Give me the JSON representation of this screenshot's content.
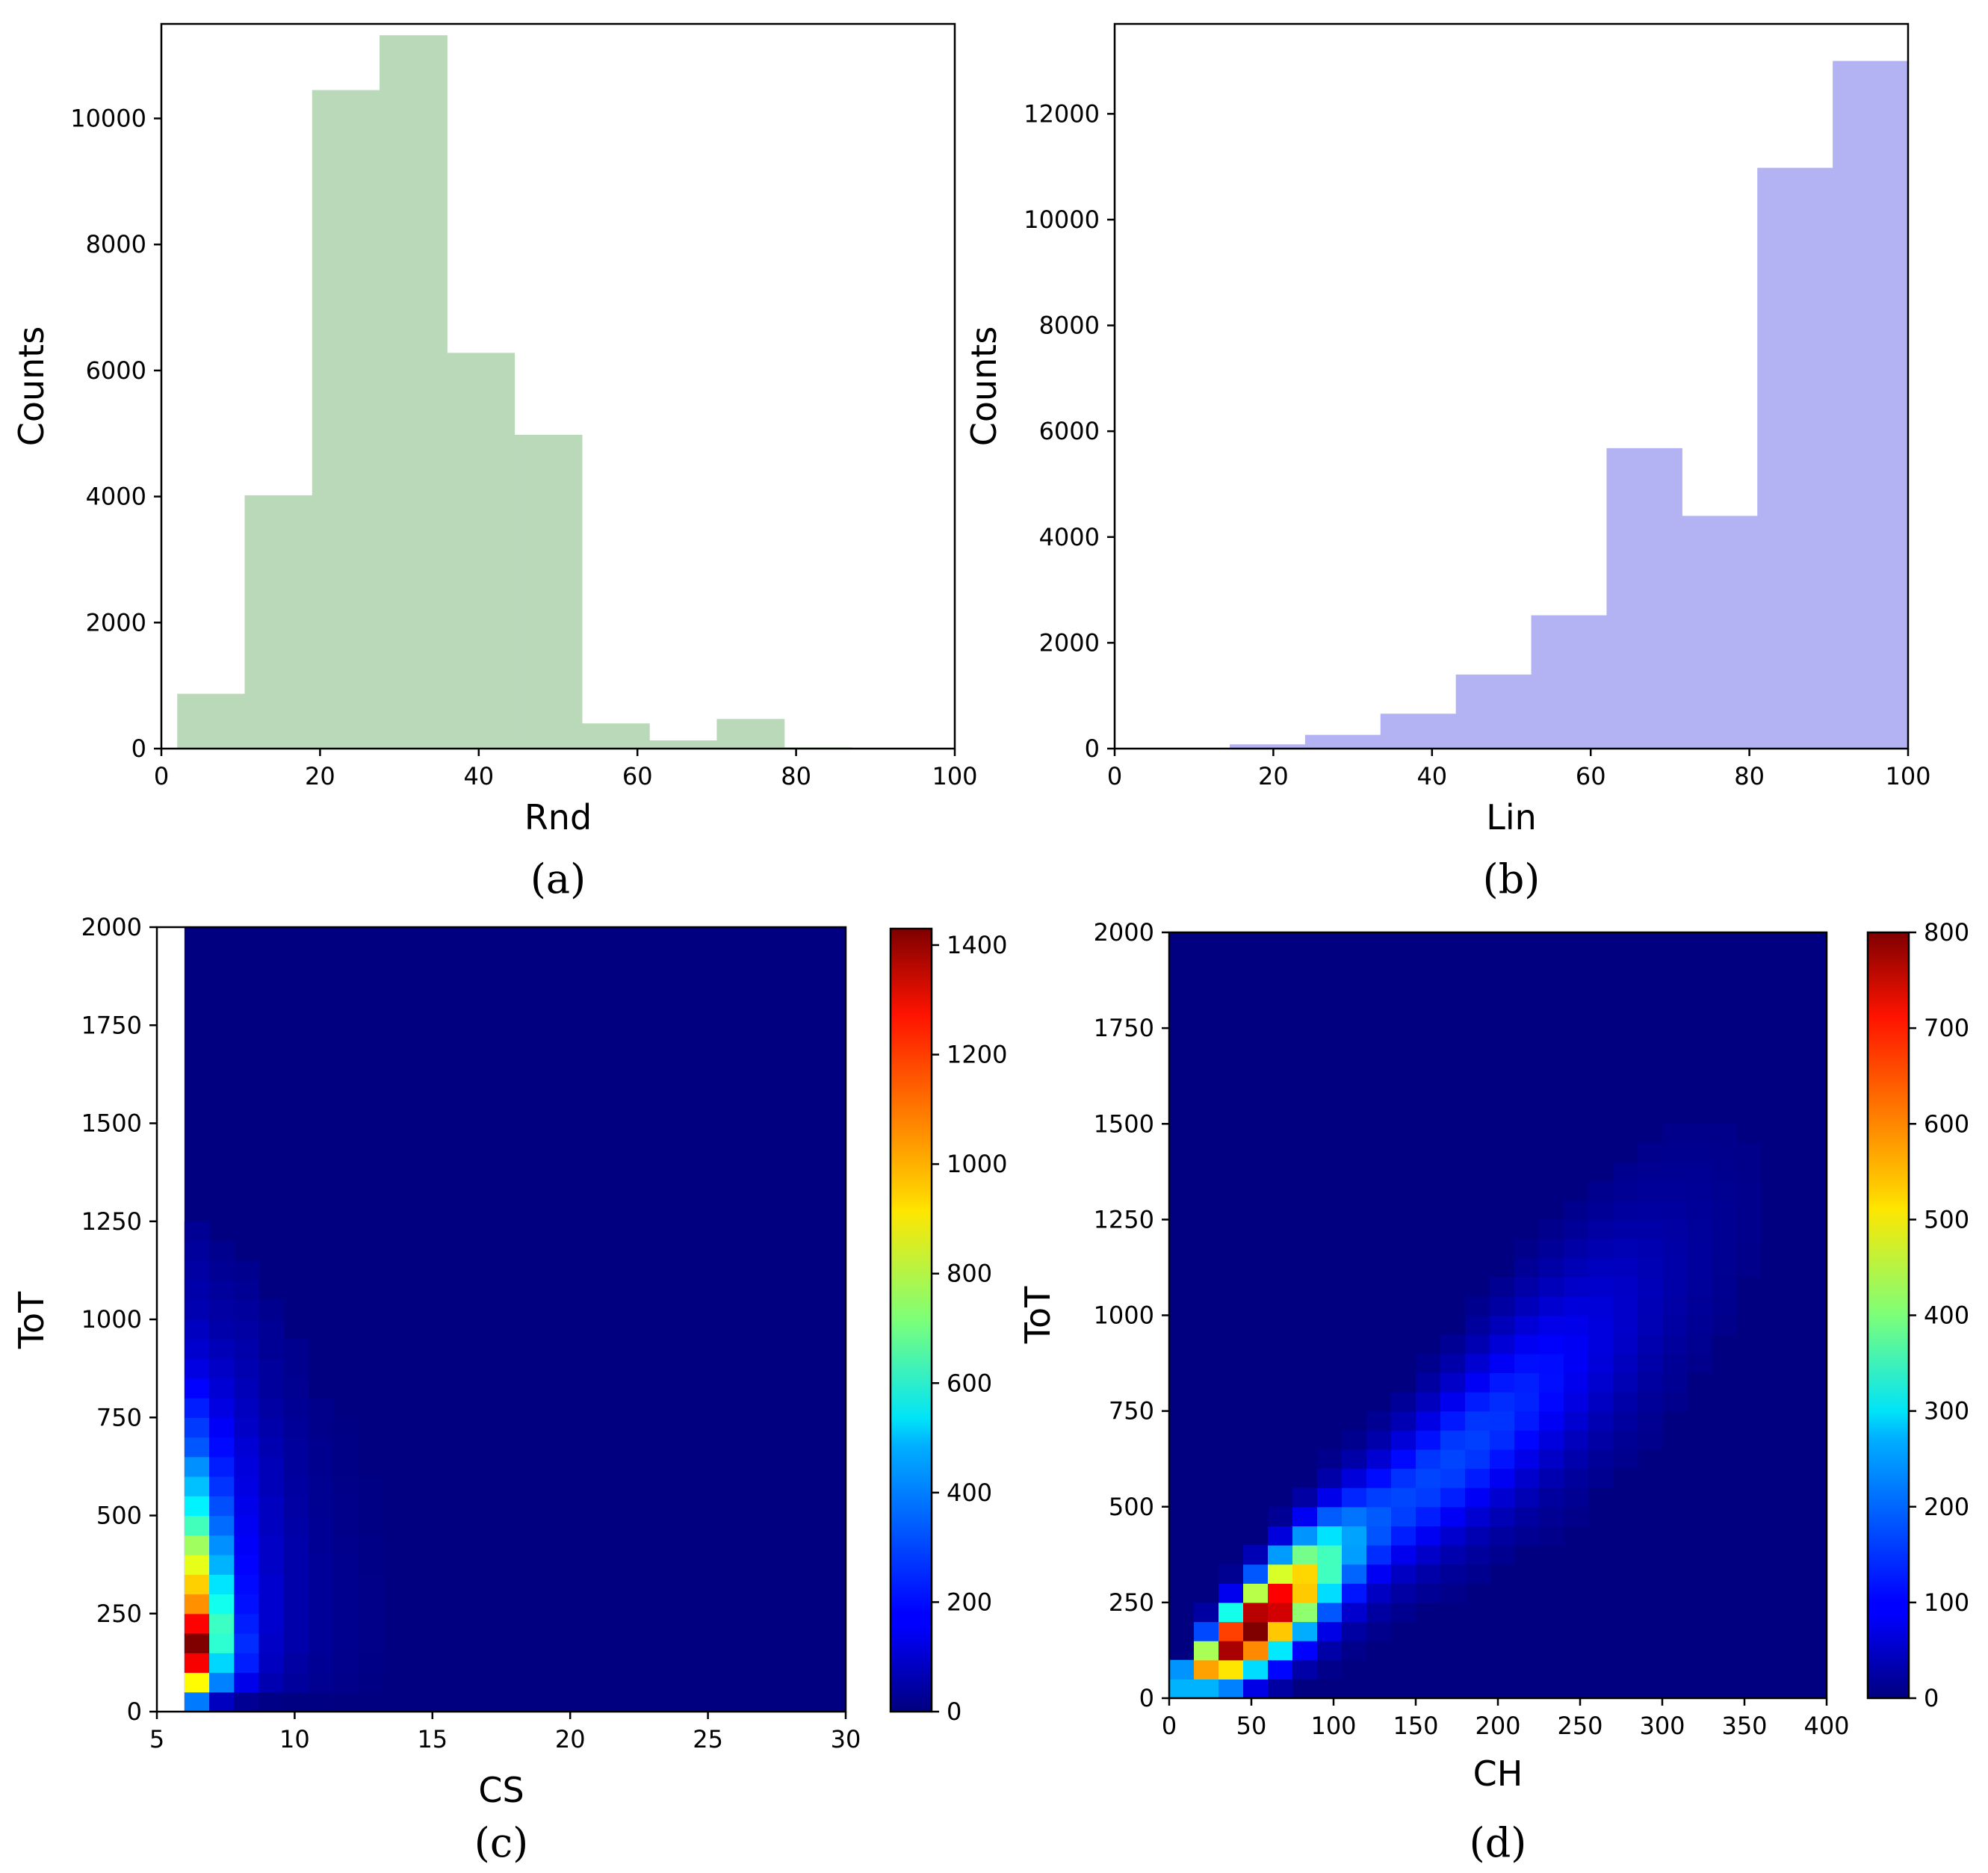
{
  "colors": {
    "hist_a": "#b9d9b9",
    "hist_b": "#b3b3f4"
  },
  "chart_data": [
    {
      "id": "a",
      "type": "bar",
      "caption": "(a)",
      "xlabel": "Rnd",
      "ylabel": "Counts",
      "xlim": [
        0,
        100
      ],
      "ylim": [
        0,
        11500
      ],
      "xticks": [
        0,
        20,
        40,
        60,
        80,
        100
      ],
      "yticks": [
        0,
        2000,
        4000,
        6000,
        8000,
        10000
      ],
      "bin_edges": [
        2,
        10.5,
        19,
        27.5,
        36,
        44.5,
        53,
        61.5,
        70,
        78.5,
        87
      ],
      "values": [
        870,
        4020,
        10450,
        11320,
        6280,
        4980,
        400,
        130,
        470,
        20
      ]
    },
    {
      "id": "b",
      "type": "bar",
      "caption": "(b)",
      "xlabel": "Lin",
      "ylabel": "Counts",
      "xlim": [
        0,
        100
      ],
      "ylim": [
        0,
        13700
      ],
      "xticks": [
        0,
        20,
        40,
        60,
        80,
        100
      ],
      "yticks": [
        0,
        2000,
        4000,
        6000,
        8000,
        10000,
        12000
      ],
      "bin_edges": [
        5,
        14.5,
        24,
        33.5,
        43,
        52.5,
        62,
        71.5,
        81,
        90.5,
        100
      ],
      "values": [
        10,
        80,
        260,
        660,
        1400,
        2520,
        5680,
        4400,
        10980,
        13000
      ]
    },
    {
      "id": "c",
      "type": "heatmap",
      "caption": "(c)",
      "xlabel": "CS",
      "ylabel": "ToT",
      "xlim": [
        5,
        30
      ],
      "ylim": [
        0,
        2000
      ],
      "xticks": [
        5,
        10,
        15,
        20,
        25,
        30
      ],
      "yticks": [
        0,
        250,
        500,
        750,
        1000,
        1250,
        1500,
        1750,
        2000
      ],
      "colorbar_ticks": [
        0,
        200,
        400,
        600,
        800,
        1000,
        1200,
        1400
      ],
      "vmax": 1430,
      "data_extent": {
        "x_start": 6,
        "bin_width_x": 0.9,
        "bin_width_y": 50
      },
      "columns": [
        {
          "x_bin": 0,
          "values": [
            350,
            900,
            1260,
            1430,
            1250,
            1050,
            960,
            860,
            760,
            630,
            520,
            450,
            380,
            300,
            260,
            220,
            180,
            140,
            110,
            90,
            70,
            60,
            50,
            40,
            30
          ]
        },
        {
          "x_bin": 1,
          "values": [
            90,
            360,
            480,
            600,
            620,
            560,
            500,
            430,
            380,
            330,
            290,
            250,
            220,
            190,
            170,
            140,
            120,
            100,
            80,
            60,
            50,
            40,
            30,
            20
          ]
        },
        {
          "x_bin": 2,
          "values": [
            30,
            150,
            220,
            240,
            220,
            200,
            190,
            180,
            170,
            160,
            150,
            140,
            130,
            120,
            100,
            90,
            80,
            70,
            60,
            50,
            40,
            30,
            20
          ]
        },
        {
          "x_bin": 3,
          "values": [
            10,
            70,
            90,
            100,
            110,
            110,
            110,
            100,
            100,
            90,
            90,
            80,
            80,
            70,
            60,
            50,
            40,
            40,
            30,
            30,
            20
          ]
        },
        {
          "x_bin": 4,
          "values": [
            5,
            40,
            50,
            60,
            60,
            60,
            60,
            60,
            60,
            55,
            50,
            45,
            40,
            40,
            35,
            30,
            25,
            20,
            20
          ]
        },
        {
          "x_bin": 5,
          "values": [
            3,
            25,
            30,
            35,
            35,
            35,
            35,
            35,
            30,
            30,
            25,
            25,
            20,
            20,
            15,
            15
          ]
        },
        {
          "x_bin": 6,
          "values": [
            2,
            15,
            18,
            20,
            20,
            20,
            20,
            20,
            18,
            15,
            15,
            12,
            10,
            10,
            8
          ]
        },
        {
          "x_bin": 7,
          "values": [
            1,
            8,
            10,
            12,
            12,
            12,
            12,
            10,
            10,
            8,
            8,
            6
          ]
        }
      ]
    },
    {
      "id": "d",
      "type": "heatmap",
      "caption": "(d)",
      "xlabel": "CH",
      "ylabel": "ToT",
      "xlim": [
        0,
        400
      ],
      "ylim": [
        0,
        2000
      ],
      "xticks": [
        0,
        50,
        100,
        150,
        200,
        250,
        300,
        350,
        400
      ],
      "yticks": [
        0,
        250,
        500,
        750,
        1000,
        1250,
        1500,
        1750,
        2000
      ],
      "colorbar_ticks": [
        0,
        100,
        200,
        300,
        400,
        500,
        600,
        700,
        800
      ],
      "vmax": 800,
      "grid": {
        "cell_x": 15,
        "cell_y": 50,
        "ridge_slope": 3.6,
        "ridge_peak_x": 50
      }
    }
  ]
}
